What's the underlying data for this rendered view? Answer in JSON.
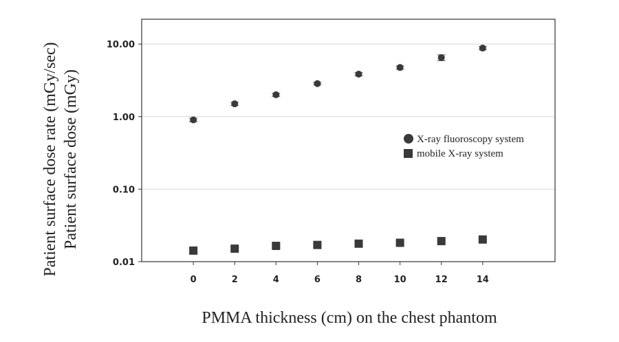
{
  "chart_data": {
    "type": "scatter",
    "title": "",
    "xlabel": "PMMA thickness (cm) on the chest phantom",
    "ylabel_lines": [
      "Patient surface dose rate (mGy/sec)",
      "Patient surface dose (mGy)"
    ],
    "x_ticks": [
      "0",
      "2",
      "4",
      "6",
      "8",
      "10",
      "12",
      "14"
    ],
    "y_ticks": [
      "0.01",
      "0.10",
      "1.00",
      "10.00"
    ],
    "x_range": [
      -2.5,
      17.5
    ],
    "y_range": [
      0.01,
      22
    ],
    "y_scale": "log",
    "grid": "horizontal",
    "legend_position": "right",
    "x": [
      0,
      2,
      4,
      6,
      8,
      10,
      12,
      14
    ],
    "series": [
      {
        "name": "X-ray fluoroscopy system",
        "marker": "circle",
        "values": [
          0.9,
          1.5,
          2.0,
          2.85,
          3.85,
          4.75,
          6.5,
          8.8
        ],
        "error": [
          0.05,
          0.08,
          0.1,
          0.12,
          0.2,
          0.25,
          0.6,
          0.45
        ]
      },
      {
        "name": "mobile X-ray system",
        "marker": "square",
        "values": [
          0.0142,
          0.0151,
          0.0165,
          0.017,
          0.0177,
          0.0182,
          0.0192,
          0.0202
        ],
        "error": [
          0.0007,
          0.0007,
          0.0007,
          0.0007,
          0.0007,
          0.0007,
          0.0007,
          0.0007
        ]
      }
    ],
    "colors": {
      "marker": "#3a3a3a",
      "grid": "#d4d4d4",
      "axis": "#333333",
      "text": "#222222"
    }
  }
}
